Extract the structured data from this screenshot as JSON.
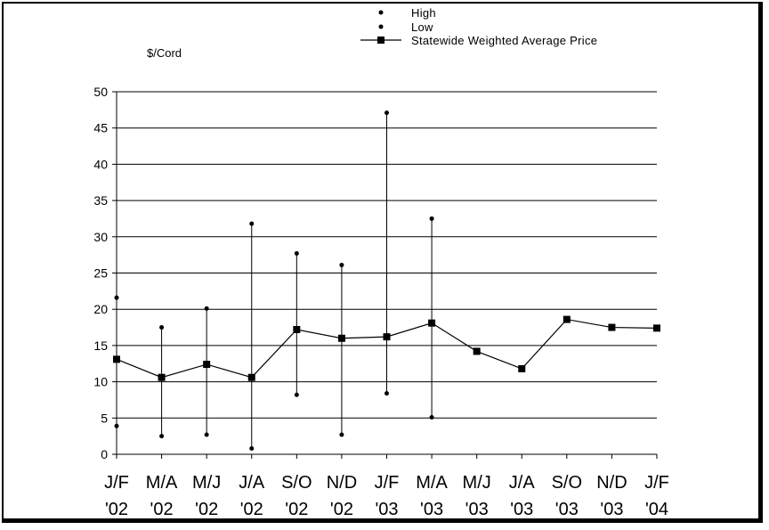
{
  "chart_data": {
    "type": "line",
    "unit_label": "$/Cord",
    "categories": [
      [
        "J/F",
        "'02"
      ],
      [
        "M/A",
        "'02"
      ],
      [
        "M/J",
        "'02"
      ],
      [
        "J/A",
        "'02"
      ],
      [
        "S/O",
        "'02"
      ],
      [
        "N/D",
        "'02"
      ],
      [
        "J/F",
        "'03"
      ],
      [
        "M/A",
        "'03"
      ],
      [
        "M/J",
        "'03"
      ],
      [
        "J/A",
        "'03"
      ],
      [
        "S/O",
        "'03"
      ],
      [
        "N/D",
        "'03"
      ],
      [
        "J/F",
        "'04"
      ]
    ],
    "ylim": [
      0,
      50
    ],
    "yticks": [
      0,
      5,
      10,
      15,
      20,
      25,
      30,
      35,
      40,
      45,
      50
    ],
    "grid": true,
    "legend_position": "top-right",
    "series": [
      {
        "name": "High",
        "marker": "dot",
        "values": [
          21.6,
          17.5,
          20.1,
          31.8,
          27.7,
          26.1,
          47.1,
          32.5,
          null,
          null,
          null,
          null,
          null
        ]
      },
      {
        "name": "Low",
        "marker": "dot",
        "values": [
          3.9,
          2.5,
          2.7,
          0.8,
          8.2,
          2.7,
          8.4,
          5.1,
          null,
          null,
          null,
          null,
          null
        ]
      },
      {
        "name": "Statewide Weighted Average Price",
        "marker": "square",
        "values": [
          13.1,
          10.6,
          12.4,
          10.6,
          17.2,
          16.0,
          16.2,
          18.1,
          14.2,
          11.8,
          18.6,
          17.5,
          17.4
        ]
      }
    ]
  }
}
